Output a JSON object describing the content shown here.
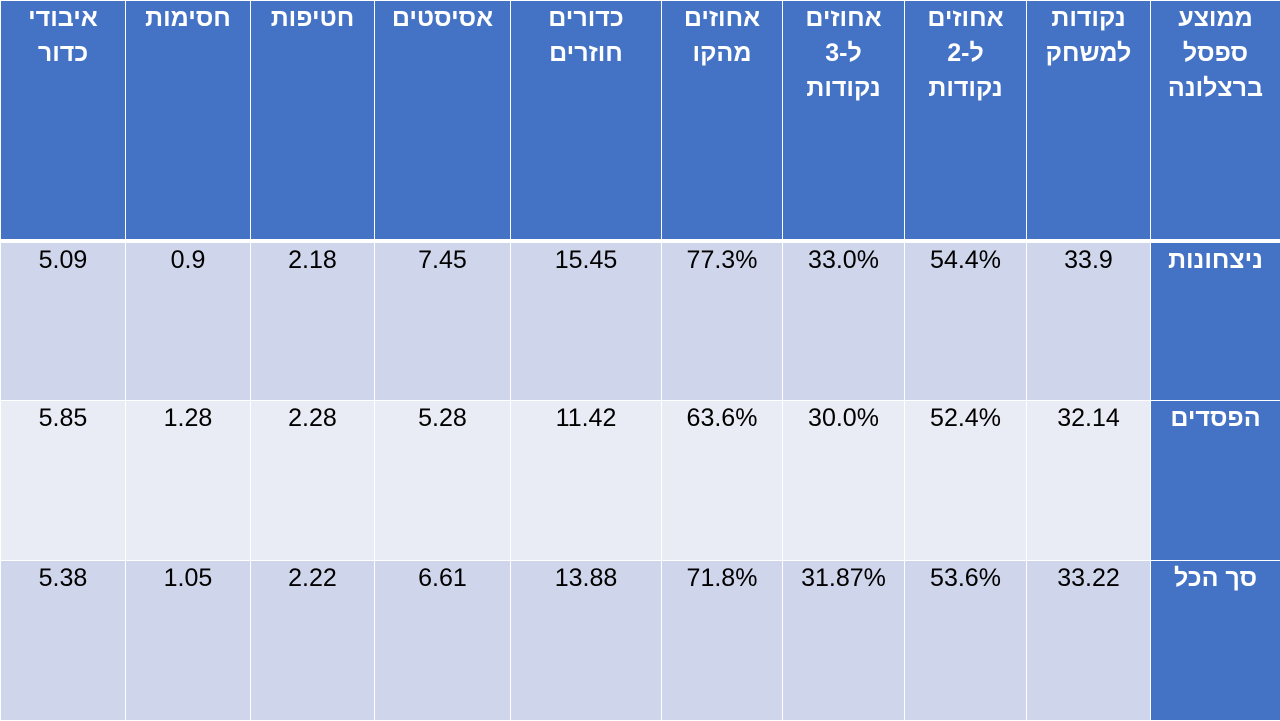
{
  "table": {
    "corner_label": "ממוצע\nספסל\nברצלונה",
    "columns": [
      "נקודות\nלמשחק",
      "אחוזים\nל-2\nנקודות",
      "אחוזים\nל-3\nנקודות",
      "אחוזים\nמהקו",
      "כדורים\nחוזרים",
      "אסיסטים",
      "חטיפות",
      "חסימות",
      "איבודי\nכדור"
    ],
    "rows": [
      {
        "label": "ניצחונות",
        "values": [
          "33.9",
          "54.4%",
          "33.0%",
          "77.3%",
          "15.45",
          "7.45",
          "2.18",
          "0.9",
          "5.09"
        ]
      },
      {
        "label": "הפסדים",
        "values": [
          "32.14",
          "52.4%",
          "30.0%",
          "63.6%",
          "11.42",
          "5.28",
          "2.28",
          "1.28",
          "5.85"
        ]
      },
      {
        "label": "סך הכל",
        "values": [
          "33.22",
          "53.6%",
          "31.87%",
          "71.8%",
          "13.88",
          "6.61",
          "2.22",
          "1.05",
          "5.38"
        ]
      }
    ]
  },
  "colors": {
    "header_bg": "#4472c4",
    "header_text": "#ffffff",
    "band_dark": "#cfd5ea",
    "band_light": "#e9ebf5"
  }
}
